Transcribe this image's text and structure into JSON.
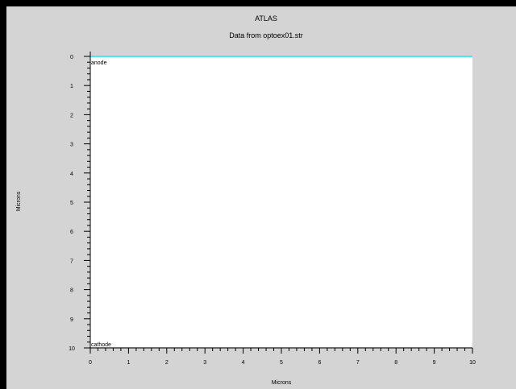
{
  "chart_data": {
    "type": "line",
    "title": "ATLAS",
    "subtitle": "Data from optoex01.str",
    "xlabel": "Microns",
    "ylabel": "Microns",
    "xlim": [
      0,
      10
    ],
    "ylim": [
      10,
      0
    ],
    "y_axis_inverted": true,
    "grid": false,
    "x_ticks": [
      0,
      1,
      2,
      3,
      4,
      5,
      6,
      7,
      8,
      9,
      10
    ],
    "y_ticks": [
      0,
      1,
      2,
      3,
      4,
      5,
      6,
      7,
      8,
      9,
      10
    ],
    "series": [
      {
        "x": [
          0,
          10
        ],
        "y": [
          0,
          0
        ],
        "color": "#00e5e5"
      }
    ],
    "annotations": [
      {
        "text": "anode",
        "x": 0,
        "y": 0
      },
      {
        "text": "cathode",
        "x": 0,
        "y": 10
      }
    ]
  },
  "colors": {
    "background": "#d4d4d4",
    "plot_area": "#ffffff",
    "border": "#000000",
    "light_line": "#00e5e5"
  }
}
